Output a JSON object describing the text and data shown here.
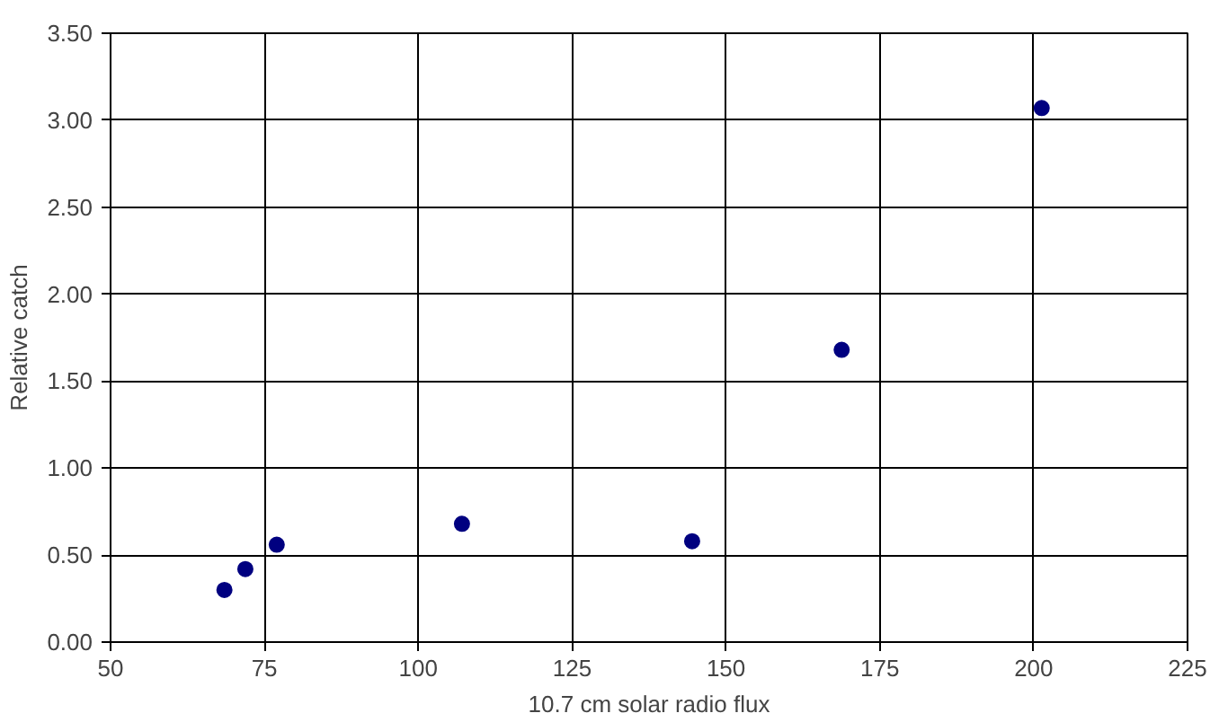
{
  "chart_data": {
    "type": "scatter",
    "xlabel": "10.7 cm solar radio flux",
    "ylabel": "Relative catch",
    "x": [
      68.5,
      71.9,
      77.0,
      107.1,
      144.5,
      168.8,
      201.3
    ],
    "series": [
      {
        "color": "#000080",
        "values": [
          0.3,
          0.42,
          0.56,
          0.68,
          0.58,
          1.68,
          3.07
        ]
      }
    ],
    "xlim": [
      50,
      225
    ],
    "xticks": [
      50,
      75,
      100,
      125,
      150,
      175,
      200,
      225
    ],
    "ylim": [
      0,
      3.5
    ],
    "yticks": [
      {
        "value": 0,
        "label": "0.00"
      },
      {
        "value": 0.5,
        "label": "0.50"
      },
      {
        "value": 1,
        "label": "1.00"
      },
      {
        "value": 1.5,
        "label": "1.50"
      },
      {
        "value": 2,
        "label": "2.00"
      },
      {
        "value": 2.5,
        "label": "2.50"
      },
      {
        "value": 3,
        "label": "3.00"
      },
      {
        "value": 3.5,
        "label": "3.50"
      }
    ],
    "grid": true,
    "marker": "circle"
  }
}
